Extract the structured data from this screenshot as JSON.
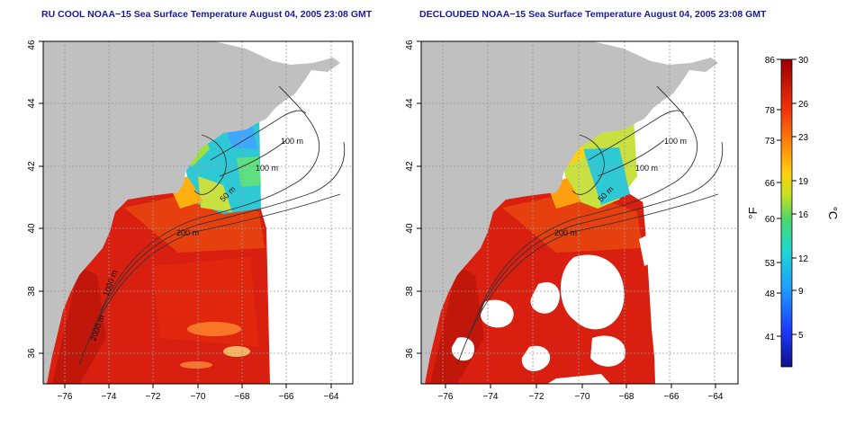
{
  "panels": [
    {
      "title": "RU COOL NOAA−15 Sea Surface Temperature August 04, 2005 23:08 GMT",
      "x_ticks": [
        "−76",
        "−74",
        "−72",
        "−70",
        "−68",
        "−66",
        "−64"
      ],
      "y_ticks": [
        "36",
        "38",
        "40",
        "42",
        "44",
        "46"
      ],
      "contour_labels": [
        "100 m",
        "100 m",
        "50 m",
        "200 m",
        "1000 m",
        "2000 m"
      ]
    },
    {
      "title": "DECLOUDED NOAA−15 Sea Surface Temperature August 04, 2005 23:08 GMT",
      "x_ticks": [
        "−76",
        "−74",
        "−72",
        "−70",
        "−68",
        "−66",
        "−64"
      ],
      "y_ticks": [
        "36",
        "38",
        "40",
        "42",
        "44",
        "46"
      ],
      "contour_labels": [
        "100 m",
        "100 m",
        "50 m",
        "200 m"
      ]
    }
  ],
  "map_extent": {
    "lon": [
      -77,
      -63
    ],
    "lat": [
      35,
      46
    ]
  },
  "colorbar": {
    "fahrenheit_label": "°F",
    "celsius_label": "°C",
    "fahrenheit_ticks": [
      "86",
      "78",
      "73",
      "66",
      "60",
      "53",
      "48",
      "41"
    ],
    "celsius_ticks": [
      "30",
      "26",
      "23",
      "19",
      "16",
      "12",
      "9",
      "5"
    ],
    "range_c": [
      2,
      30
    ]
  },
  "colors": {
    "land": "#c0c0c0",
    "nodata": "#ffffff",
    "title": "#1a1a9c",
    "contour": "#333333",
    "warm": "#d81f10",
    "cool": "#2fc9d6"
  }
}
